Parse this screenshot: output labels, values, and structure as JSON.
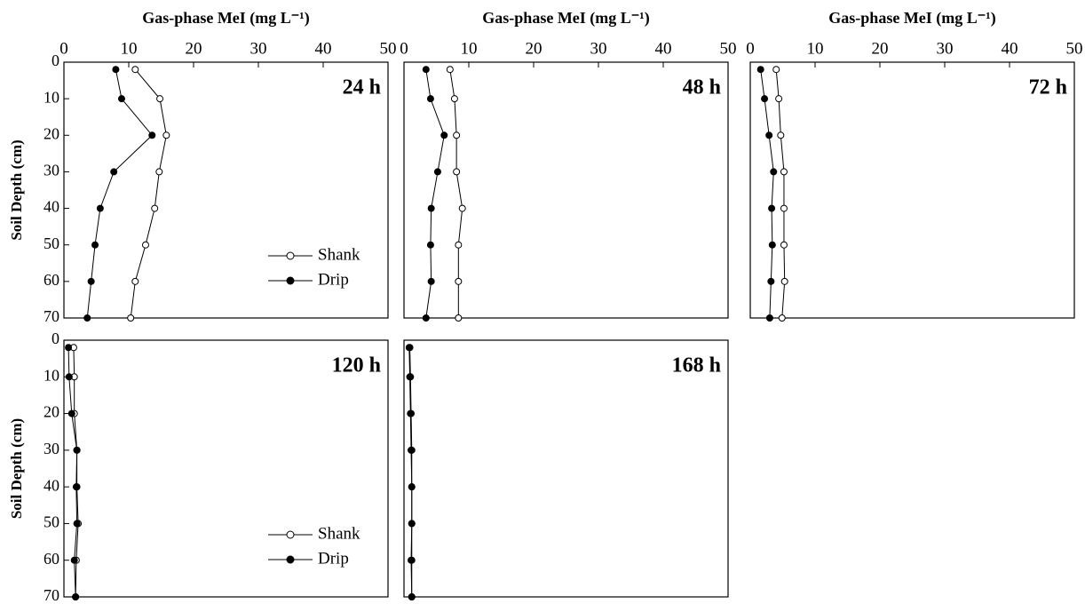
{
  "chart_data": [
    {
      "type": "line",
      "label": "24 h",
      "xlabel": "Gas-phase MeI (mg L⁻¹)",
      "ylabel": "Soil Depth (cm)",
      "xlim": [
        0,
        50
      ],
      "xticks": [
        0,
        10,
        20,
        30,
        40,
        50
      ],
      "ylim": [
        0,
        70
      ],
      "yticks": [
        0,
        10,
        20,
        30,
        40,
        50,
        60,
        70
      ],
      "y_inverted": true,
      "legend": "lower right",
      "y": [
        2,
        10,
        20,
        30,
        40,
        50,
        60,
        70
      ],
      "series": [
        {
          "name": "Shank",
          "color": "#000000",
          "marker": "open",
          "values": [
            11,
            14.8,
            15.8,
            14.7,
            14,
            12.6,
            11,
            10.3
          ]
        },
        {
          "name": "Drip",
          "color": "#000000",
          "marker": "filled",
          "values": [
            8,
            8.9,
            13.6,
            7.7,
            5.6,
            4.8,
            4.2,
            3.6
          ]
        }
      ]
    },
    {
      "type": "line",
      "label": "48 h",
      "xlabel": "Gas-phase MeI (mg L⁻¹)",
      "xlim": [
        0,
        50
      ],
      "xticks": [
        0,
        10,
        20,
        30,
        40,
        50
      ],
      "ylim": [
        0,
        70
      ],
      "y_inverted": true,
      "y": [
        2,
        10,
        20,
        30,
        40,
        50,
        60,
        70
      ],
      "series": [
        {
          "name": "Shank",
          "color": "#000000",
          "marker": "open",
          "values": [
            7.1,
            7.8,
            8.1,
            8.1,
            9,
            8.4,
            8.4,
            8.4
          ]
        },
        {
          "name": "Drip",
          "color": "#000000",
          "marker": "filled",
          "values": [
            3.4,
            4.1,
            6.2,
            5.2,
            4.2,
            4.1,
            4.2,
            3.4
          ]
        }
      ]
    },
    {
      "type": "line",
      "label": "72 h",
      "xlabel": "Gas-phase MeI (mg L⁻¹)",
      "xlim": [
        0,
        50
      ],
      "xticks": [
        0,
        10,
        20,
        30,
        40,
        50
      ],
      "ylim": [
        0,
        70
      ],
      "y_inverted": true,
      "y": [
        2,
        10,
        20,
        30,
        40,
        50,
        60,
        70
      ],
      "series": [
        {
          "name": "Shank",
          "color": "#000000",
          "marker": "open",
          "values": [
            4,
            4.4,
            4.7,
            5.2,
            5.2,
            5.2,
            5.3,
            4.9
          ]
        },
        {
          "name": "Drip",
          "color": "#000000",
          "marker": "filled",
          "values": [
            1.6,
            2.2,
            2.9,
            3.6,
            3.3,
            3.4,
            3.2,
            3.0
          ]
        }
      ]
    },
    {
      "type": "line",
      "label": "120 h",
      "ylabel": "Soil Depth (cm)",
      "xlim": [
        0,
        50
      ],
      "ylim": [
        0,
        70
      ],
      "yticks": [
        0,
        10,
        20,
        30,
        40,
        50,
        60,
        70
      ],
      "y_inverted": true,
      "legend": "lower right",
      "y": [
        2,
        10,
        20,
        30,
        40,
        50,
        60,
        70
      ],
      "series": [
        {
          "name": "Shank",
          "color": "#000000",
          "marker": "open",
          "values": [
            1.5,
            1.6,
            1.6,
            2,
            2,
            2.2,
            1.9,
            1.8
          ]
        },
        {
          "name": "Drip",
          "color": "#000000",
          "marker": "filled",
          "values": [
            0.7,
            0.8,
            1.2,
            2,
            1.9,
            2,
            1.6,
            1.8
          ]
        }
      ]
    },
    {
      "type": "line",
      "label": "168 h",
      "xlim": [
        0,
        50
      ],
      "ylim": [
        0,
        70
      ],
      "y_inverted": true,
      "y": [
        2,
        10,
        20,
        30,
        40,
        50,
        60,
        70
      ],
      "series": [
        {
          "name": "Shank",
          "color": "#000000",
          "marker": "open",
          "values": [
            0.9,
            1.0,
            1.1,
            1.2,
            1.2,
            1.2,
            1.2,
            1.2
          ]
        },
        {
          "name": "Drip",
          "color": "#000000",
          "marker": "filled",
          "values": [
            0.8,
            0.9,
            1.0,
            1.1,
            1.2,
            1.2,
            1.1,
            1.2
          ]
        }
      ]
    }
  ]
}
